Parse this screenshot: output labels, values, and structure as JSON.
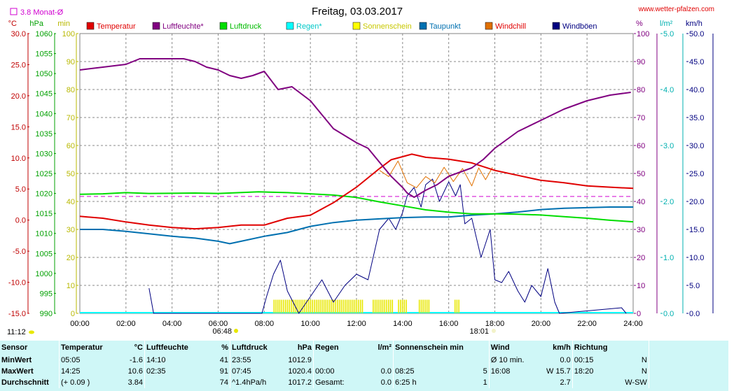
{
  "header": {
    "title": "Freitag, 03.03.2017",
    "website": "www.wetter-pfalzen.com",
    "monthly_avg_label": "3.8 Monat-Ø"
  },
  "axis_units": {
    "temp": "°C",
    "pressure": "hPa",
    "minutes": "min",
    "percent": "%",
    "rain": "l/m²",
    "wind": "km/h"
  },
  "left_axes": {
    "temp_ticks": [
      "30.0",
      "25.0",
      "20.0",
      "15.0",
      "10.0",
      "5.0",
      "0.0",
      "-5.0",
      "-10.0",
      "-15.0"
    ],
    "pressure_ticks": [
      "1060",
      "1055",
      "1050",
      "1045",
      "1040",
      "1035",
      "1030",
      "1025",
      "1020",
      "1015",
      "1010",
      "1005",
      "1000",
      "995",
      "990"
    ],
    "minute_ticks": [
      "100",
      "90",
      "80",
      "70",
      "60",
      "50",
      "40",
      "30",
      "20",
      "10",
      "0"
    ]
  },
  "right_axes": {
    "percent_ticks": [
      "100",
      "90",
      "80",
      "70",
      "60",
      "50",
      "40",
      "30",
      "20",
      "10",
      "0"
    ],
    "rain_ticks": [
      "5.0",
      "4.0",
      "3.0",
      "2.0",
      "1.0",
      "0.0"
    ],
    "wind_ticks": [
      "50.0",
      "45.0",
      "40.0",
      "35.0",
      "30.0",
      "25.0",
      "20.0",
      "15.0",
      "10.0",
      "5.0",
      "0.0"
    ]
  },
  "x_ticks": [
    "00:00",
    "02:00",
    "04:00",
    "06:00",
    "08:00",
    "10:00",
    "12:00",
    "14:00",
    "16:00",
    "18:00",
    "20:00",
    "22:00",
    "24:00"
  ],
  "sun_times": {
    "moonrise": "11:12",
    "sunrise": "06:48",
    "sunset": "18:01"
  },
  "colors": {
    "temperature": "#e00000",
    "humidity": "#800080",
    "pressure": "#00dd00",
    "rain": "#00ffff",
    "sunshine": "#e8e800",
    "dewpoint": "#0070b0",
    "windchill": "#e07000",
    "gusts": "#000080",
    "monthly_avg": "#d000d0",
    "temp_axis": "#c00000",
    "pressure_axis": "#00a000",
    "minutes_axis": "#b8b800",
    "percent_axis": "#800080",
    "rain_axis": "#00b0b0",
    "wind_axis": "#000080",
    "stats_bg": "#cff7f7"
  },
  "legend": [
    "Temperatur",
    "Luftfeuchte*",
    "Luftdruck",
    "Regen*",
    "Sonnenschein",
    "Taupunkt",
    "Windchill",
    "Windböen"
  ],
  "chart_data": {
    "type": "line",
    "x_unit": "hour",
    "xlim": [
      0,
      24
    ],
    "monthly_avg_temp": 3.8,
    "series": [
      {
        "name": "Temperatur",
        "axis": "temp",
        "ylim": [
          -15,
          30
        ],
        "points": [
          [
            0,
            0.6
          ],
          [
            1,
            0.3
          ],
          [
            2,
            -0.3
          ],
          [
            3,
            -0.8
          ],
          [
            4,
            -1.2
          ],
          [
            5,
            -1.4
          ],
          [
            6,
            -1.2
          ],
          [
            7,
            -0.8
          ],
          [
            8,
            -0.8
          ],
          [
            9,
            0.3
          ],
          [
            10,
            0.8
          ],
          [
            11,
            2.8
          ],
          [
            12,
            5.3
          ],
          [
            13,
            8.3
          ],
          [
            13.5,
            9.7
          ],
          [
            14,
            10.2
          ],
          [
            14.4,
            10.6
          ],
          [
            15,
            10.1
          ],
          [
            16,
            9.8
          ],
          [
            17,
            9.2
          ],
          [
            18,
            8.0
          ],
          [
            19,
            7.2
          ],
          [
            20,
            6.4
          ],
          [
            21,
            6.0
          ],
          [
            22,
            5.5
          ],
          [
            23,
            5.3
          ],
          [
            24,
            5.1
          ]
        ]
      },
      {
        "name": "Luftfeuchte*",
        "axis": "percent",
        "ylim": [
          0,
          100
        ],
        "points": [
          [
            0,
            87
          ],
          [
            1,
            88
          ],
          [
            2,
            89
          ],
          [
            2.6,
            91
          ],
          [
            4,
            91
          ],
          [
            4.5,
            91
          ],
          [
            5,
            90
          ],
          [
            5.5,
            88
          ],
          [
            6,
            87
          ],
          [
            6.5,
            85
          ],
          [
            7,
            84
          ],
          [
            7.5,
            85
          ],
          [
            8,
            86.5
          ],
          [
            8.6,
            80
          ],
          [
            9.2,
            81
          ],
          [
            10,
            76
          ],
          [
            10.5,
            71
          ],
          [
            11,
            66
          ],
          [
            12,
            61
          ],
          [
            12.5,
            59
          ],
          [
            13,
            54
          ],
          [
            13.5,
            49
          ],
          [
            14,
            45
          ],
          [
            14.2,
            43
          ],
          [
            14.5,
            41.5
          ],
          [
            15,
            44
          ],
          [
            15.5,
            46
          ],
          [
            16,
            49
          ],
          [
            17,
            52
          ],
          [
            17.5,
            55
          ],
          [
            18,
            59
          ],
          [
            19,
            65
          ],
          [
            20,
            69
          ],
          [
            21,
            73
          ],
          [
            22,
            76
          ],
          [
            23,
            78
          ],
          [
            23.9,
            79
          ]
        ]
      },
      {
        "name": "Luftdruck",
        "axis": "pressure",
        "ylim": [
          990,
          1060
        ],
        "points": [
          [
            0,
            1019.8
          ],
          [
            1,
            1019.9
          ],
          [
            2,
            1020.2
          ],
          [
            3,
            1020.0
          ],
          [
            5,
            1020.1
          ],
          [
            6,
            1020.0
          ],
          [
            7.75,
            1020.4
          ],
          [
            9,
            1020.2
          ],
          [
            10,
            1019.9
          ],
          [
            11,
            1019.6
          ],
          [
            12,
            1019.0
          ],
          [
            13,
            1017.9
          ],
          [
            14,
            1016.9
          ],
          [
            15,
            1015.9
          ],
          [
            16,
            1015.3
          ],
          [
            17,
            1014.9
          ],
          [
            18,
            1014.9
          ],
          [
            19,
            1014.8
          ],
          [
            20,
            1014.6
          ],
          [
            21,
            1014.2
          ],
          [
            22,
            1013.8
          ],
          [
            23,
            1013.3
          ],
          [
            24,
            1012.9
          ]
        ]
      },
      {
        "name": "Taupunkt",
        "axis": "temp",
        "ylim": [
          -15,
          30
        ],
        "points": [
          [
            0,
            -1.5
          ],
          [
            1,
            -1.5
          ],
          [
            2,
            -1.8
          ],
          [
            3,
            -2.2
          ],
          [
            4,
            -2.6
          ],
          [
            5,
            -2.9
          ],
          [
            6,
            -3.4
          ],
          [
            6.5,
            -3.8
          ],
          [
            7,
            -3.4
          ],
          [
            8,
            -2.6
          ],
          [
            9,
            -2.0
          ],
          [
            10,
            -1.0
          ],
          [
            11,
            -0.4
          ],
          [
            12,
            0.0
          ],
          [
            13,
            0.2
          ],
          [
            14,
            0.4
          ],
          [
            15,
            0.5
          ],
          [
            16,
            0.5
          ],
          [
            17,
            0.8
          ],
          [
            18,
            1.0
          ],
          [
            19,
            1.3
          ],
          [
            20,
            1.7
          ],
          [
            21,
            1.9
          ],
          [
            22,
            2.0
          ],
          [
            23,
            2.1
          ],
          [
            24,
            2.1
          ]
        ]
      },
      {
        "name": "Windchill",
        "axis": "temp",
        "ylim": [
          -15,
          30
        ],
        "points": [
          [
            13,
            8.0
          ],
          [
            13.4,
            7.0
          ],
          [
            13.8,
            9.5
          ],
          [
            14.2,
            6.0
          ],
          [
            14.6,
            5.2
          ],
          [
            15,
            7.0
          ],
          [
            15.4,
            6.0
          ],
          [
            15.8,
            8.5
          ],
          [
            16.2,
            6.2
          ],
          [
            16.6,
            8.3
          ],
          [
            17,
            5.5
          ],
          [
            17.3,
            8.4
          ],
          [
            17.6,
            6.5
          ],
          [
            17.9,
            8.5
          ]
        ]
      },
      {
        "name": "Windböen",
        "axis": "wind",
        "ylim": [
          0,
          50
        ],
        "points": [
          [
            3,
            4.5
          ],
          [
            3.2,
            0
          ],
          [
            7.9,
            0
          ],
          [
            8.1,
            3
          ],
          [
            8.4,
            7
          ],
          [
            8.7,
            9.5
          ],
          [
            9,
            4
          ],
          [
            9.5,
            0
          ],
          [
            10,
            3
          ],
          [
            10.5,
            6
          ],
          [
            11,
            2
          ],
          [
            11.5,
            5
          ],
          [
            12,
            7
          ],
          [
            12.5,
            6
          ],
          [
            13,
            15
          ],
          [
            13.4,
            17
          ],
          [
            13.7,
            15
          ],
          [
            14,
            18
          ],
          [
            14.2,
            21
          ],
          [
            14.5,
            22.5
          ],
          [
            14.8,
            19
          ],
          [
            15,
            23
          ],
          [
            15.3,
            24
          ],
          [
            15.6,
            20
          ],
          [
            16,
            23.5
          ],
          [
            16.3,
            21
          ],
          [
            16.5,
            23
          ],
          [
            16.7,
            16
          ],
          [
            17,
            17
          ],
          [
            17.4,
            10
          ],
          [
            17.8,
            15
          ],
          [
            18,
            6
          ],
          [
            18.3,
            5.5
          ],
          [
            18.6,
            7.5
          ],
          [
            19,
            4
          ],
          [
            19.3,
            2
          ],
          [
            19.6,
            5
          ],
          [
            20,
            3
          ],
          [
            20.3,
            8
          ],
          [
            20.6,
            2
          ],
          [
            20.8,
            0
          ],
          [
            23.5,
            1
          ],
          [
            23.7,
            0
          ]
        ]
      },
      {
        "name": "Sonnenschein",
        "axis": "minutes",
        "ylim": [
          0,
          100
        ],
        "type": "bar",
        "intervals": [
          [
            8.4,
            12.3
          ],
          [
            12.7,
            13.6
          ],
          [
            13.8,
            14.2
          ],
          [
            14.7,
            15.2
          ],
          [
            16.25,
            16.45
          ]
        ],
        "value": 5
      }
    ]
  },
  "stats": {
    "headers": {
      "sensor": "Sensor",
      "temperature": "Temperatur",
      "temperature_unit": "°C",
      "humidity": "Luftfeuchte",
      "humidity_unit": "%",
      "pressure": "Luftdruck",
      "pressure_unit": "hPa",
      "rain": "Regen",
      "rain_unit": "l/m²",
      "sun": "Sonnenschein min",
      "wind": "Wind",
      "wind_unit": "km/h",
      "direction": "Richtung"
    },
    "rows": [
      {
        "label": "MinWert",
        "temp_time": "05:05",
        "temp_val": "-1.6",
        "hum_time": "14:10",
        "hum_val": "41",
        "pres_time": "23:55",
        "pres_val": "1012.9",
        "rain_time": "",
        "rain_val": "",
        "sun_time": "",
        "sun_val": "",
        "wind_time": "Ø 10 min.",
        "wind_val": "0.0",
        "dir_time": "00:15",
        "dir_val": "N"
      },
      {
        "label": "MaxWert",
        "temp_time": "14:25",
        "temp_val": "10.6",
        "hum_time": "02:35",
        "hum_val": "91",
        "pres_time": "07:45",
        "pres_val": "1020.4",
        "rain_time": "00:00",
        "rain_val": "0.0",
        "sun_time": "08:25",
        "sun_val": "5",
        "wind_time": "16:08",
        "wind_val": "W 15.7",
        "dir_time": "18:20",
        "dir_val": "N"
      },
      {
        "label": "Durchschnitt",
        "temp_time": "(+ 0.09 )",
        "temp_val": "3.84",
        "hum_time": "",
        "hum_val": "74",
        "pres_time": "^1.4hPa/h",
        "pres_val": "1017.2",
        "rain_time": "Gesamt:",
        "rain_val": "0.0",
        "sun_time": "6:25 h",
        "sun_val": "1",
        "wind_time": "",
        "wind_val": "2.7",
        "dir_time": "",
        "dir_val": "W-SW"
      }
    ]
  }
}
